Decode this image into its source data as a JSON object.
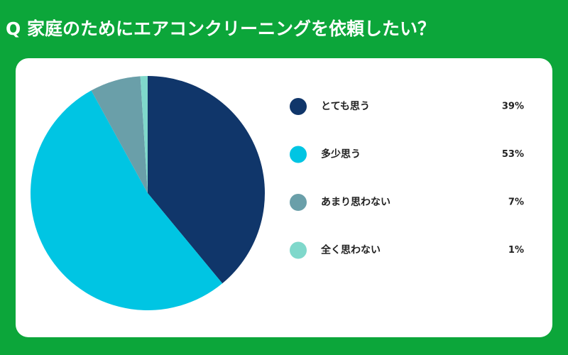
{
  "chart_data": {
    "type": "pie",
    "title": "Q 家庭のためにエアコンクリーニングを依頼したい？",
    "categories": [
      "とても思う",
      "多少思う",
      "あまり思わない",
      "全く思わない"
    ],
    "values": [
      39,
      53,
      7,
      1
    ],
    "value_labels": [
      "39%",
      "53%",
      "7%",
      "1%"
    ],
    "colors": [
      "#10366a",
      "#00c5e3",
      "#6a9fa9",
      "#7fd8cb"
    ]
  }
}
